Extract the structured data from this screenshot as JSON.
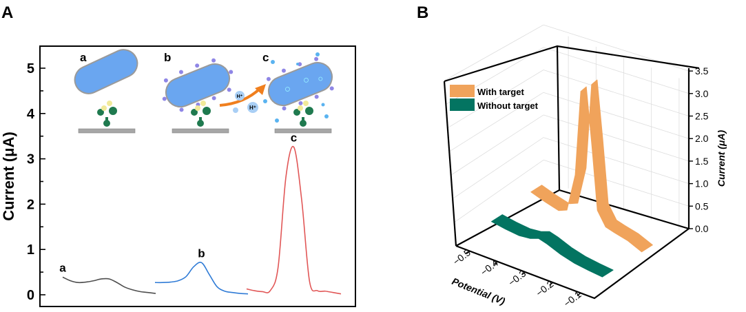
{
  "panels": {
    "a_label": "A",
    "b_label": "B"
  },
  "schematic": {
    "labels": [
      "a",
      "b",
      "c"
    ],
    "proton": "H⁺",
    "colors": {
      "cell": "#6aa6f0",
      "antibody": "#1f7a4f",
      "antigen": "#f1ea9a",
      "electrode": "#a6a6a6",
      "arrow": "#f07f1e",
      "surface_ab": "#8f86e6"
    }
  },
  "chart_data": [
    {
      "type": "line",
      "title": "",
      "xlabel": "",
      "ylabel": "Current (μA)",
      "ylim": [
        0,
        5.5
      ],
      "yticks": [
        "0",
        "1",
        "2",
        "3",
        "4",
        "5"
      ],
      "grid": false,
      "series": [
        {
          "name": "a",
          "color": "#4d4d4d",
          "values": [
            0.39,
            0.31,
            0.27,
            0.28,
            0.31,
            0.35,
            0.35,
            0.27,
            0.17,
            0.11,
            0.07,
            0.05,
            0.03
          ]
        },
        {
          "name": "b",
          "color": "#2f7bd6",
          "values": [
            0.27,
            0.27,
            0.28,
            0.31,
            0.4,
            0.62,
            0.71,
            0.45,
            0.18,
            0.08,
            0.05,
            0.03,
            0.02
          ]
        },
        {
          "name": "c",
          "color": "#e15656",
          "values": [
            0.13,
            0.09,
            0.07,
            0.09,
            0.6,
            2.6,
            3.26,
            2.1,
            0.3,
            0.09,
            0.08,
            0.05,
            0.02
          ]
        }
      ]
    },
    {
      "type": "line",
      "subtype": "3d-ribbon",
      "title": "",
      "xlabel": "Potential (V)",
      "zlabel": "Current (μA)",
      "xlim": [
        -0.55,
        -0.05
      ],
      "zlim": [
        0,
        3.5
      ],
      "xticks": [
        "−0.5",
        "−0.4",
        "−0.3",
        "−0.2",
        "−0.1"
      ],
      "xtick_values": [
        -0.5,
        -0.4,
        -0.3,
        -0.2,
        -0.1
      ],
      "zticks": [
        "0.0",
        "0.5",
        "1.0",
        "1.5",
        "2.0",
        "2.5",
        "3.0",
        "3.5"
      ],
      "legend_position": "top-left",
      "grid": true,
      "series": [
        {
          "name": "With target",
          "color": "#f0a35b",
          "x": [
            -0.5,
            -0.45,
            -0.4,
            -0.37,
            -0.34,
            -0.32,
            -0.3,
            -0.28,
            -0.26,
            -0.23,
            -0.2,
            -0.15,
            -0.1
          ],
          "values": [
            0.45,
            0.35,
            0.27,
            0.35,
            1.2,
            3.1,
            3.25,
            2.0,
            0.6,
            0.3,
            0.25,
            0.18,
            0.05
          ]
        },
        {
          "name": "Without target",
          "color": "#037461",
          "x": [
            -0.5,
            -0.45,
            -0.4,
            -0.36,
            -0.33,
            -0.3,
            -0.25,
            -0.2,
            -0.15,
            -0.1
          ],
          "values": [
            0.35,
            0.3,
            0.27,
            0.3,
            0.37,
            0.32,
            0.2,
            0.12,
            0.08,
            0.05
          ]
        }
      ]
    }
  ]
}
